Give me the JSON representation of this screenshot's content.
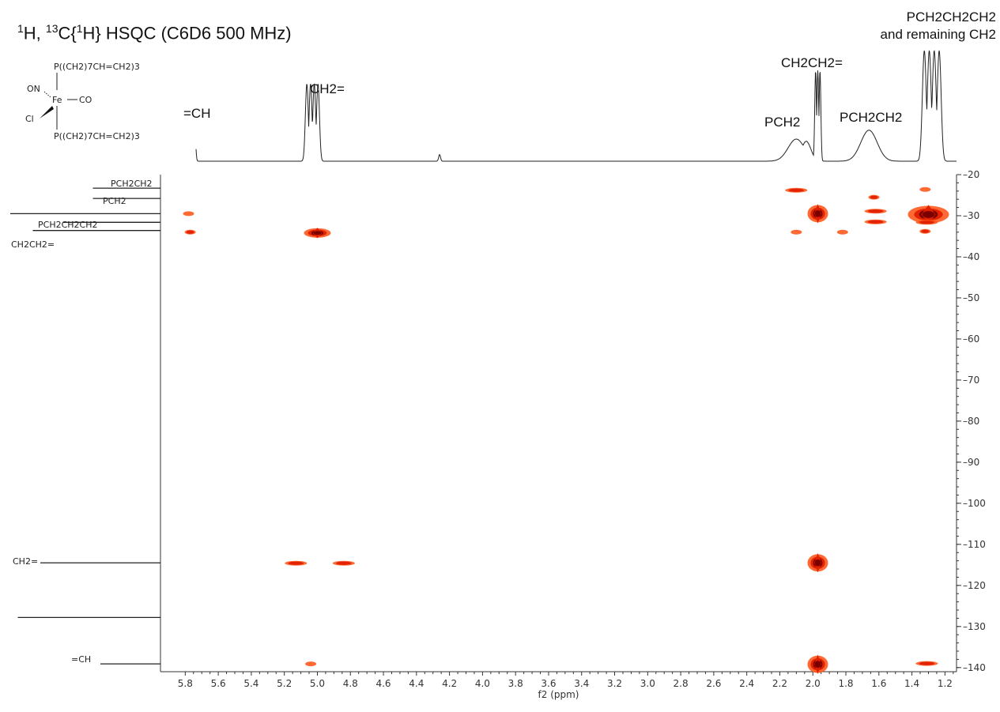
{
  "title": {
    "sup1": "1",
    "part1": "H, ",
    "sup2": "13",
    "part2": "C{",
    "sup3": "1",
    "part3": "H} HSQC (C6D6 500 MHz)"
  },
  "molecule": {
    "top_ligand": "P((CH2)7CH=CH2)3",
    "bottom_ligand": "P((CH2)7CH=CH2)3",
    "left_top": "ON",
    "left_bottom": "Cl",
    "metal": "Fe",
    "right": "CO"
  },
  "peak_labels": {
    "vinyl_ch": "=CH",
    "ch2_eq": "CH2=",
    "pch2": "PCH2",
    "ch2ch2_eq": "CH2CH2=",
    "pch2ch2": "PCH2CH2",
    "pch2ch2ch2_line1": "PCH2CH2CH2",
    "pch2ch2ch2_line2": "and remaining CH2"
  },
  "carbon_labels": {
    "pch2ch2": "PCH2CH2",
    "pch2": "PCH2",
    "pch2ch2ch2": "PCH2CH2CH2",
    "ch2ch2_eq": "CH2CH2=",
    "ch2_eq": "CH2=",
    "eq_ch": "=CH"
  },
  "chart_data": {
    "type": "heatmap",
    "xlabel": "f2 (ppm)",
    "ylabel": "",
    "xlim": [
      5.95,
      1.13
    ],
    "ylim": [
      20,
      141
    ],
    "x_ticks": [
      5.8,
      5.6,
      5.4,
      5.2,
      5.0,
      4.8,
      4.6,
      4.4,
      4.2,
      4.0,
      3.8,
      3.6,
      3.4,
      3.2,
      3.0,
      2.8,
      2.6,
      2.4,
      2.2,
      2.0,
      1.8,
      1.6,
      1.4,
      1.2
    ],
    "y_ticks": [
      20,
      30,
      40,
      50,
      60,
      70,
      80,
      90,
      100,
      110,
      120,
      130,
      140
    ],
    "proton_1d": [
      {
        "ppm": 5.77,
        "height": 0.27,
        "width": 0.035,
        "multiplet": 5
      },
      {
        "ppm": 5.03,
        "height": 0.7,
        "width": 0.045,
        "multiplet": 4
      },
      {
        "ppm": 4.26,
        "height": 0.06,
        "width": 0.008,
        "multiplet": 1
      },
      {
        "ppm": 2.1,
        "height": 0.2,
        "width": 0.07,
        "multiplet": 1
      },
      {
        "ppm": 2.04,
        "height": 0.18,
        "width": 0.04,
        "multiplet": 1
      },
      {
        "ppm": 1.97,
        "height": 0.82,
        "width": 0.02,
        "multiplet": 3
      },
      {
        "ppm": 1.66,
        "height": 0.28,
        "width": 0.07,
        "multiplet": 1
      },
      {
        "ppm": 1.28,
        "height": 1.0,
        "width": 0.06,
        "multiplet": 4
      }
    ],
    "carbon_1d": [
      {
        "ppm": 23.3,
        "height": 0.45
      },
      {
        "ppm": 25.8,
        "height": 0.45
      },
      {
        "ppm": 29.5,
        "height": 1.0
      },
      {
        "ppm": 31.6,
        "height": 0.65
      },
      {
        "ppm": 33.6,
        "height": 0.85
      },
      {
        "ppm": 114.5,
        "height": 0.8
      },
      {
        "ppm": 127.8,
        "height": 0.95
      },
      {
        "ppm": 139.1,
        "height": 0.4
      }
    ],
    "cross_peaks": [
      {
        "h": 1.97,
        "c": 29.5,
        "intensity": 1.0,
        "size": "large"
      },
      {
        "h": 1.3,
        "c": 29.7,
        "intensity": 1.0,
        "size": "xlarge"
      },
      {
        "h": 5.0,
        "c": 34.2,
        "intensity": 0.9,
        "size": "medium"
      },
      {
        "h": 1.97,
        "c": 114.5,
        "intensity": 1.0,
        "size": "large"
      },
      {
        "h": 1.97,
        "c": 139.2,
        "intensity": 1.0,
        "size": "large"
      },
      {
        "h": 5.78,
        "c": 29.5,
        "intensity": 0.3,
        "size": "small"
      },
      {
        "h": 5.77,
        "c": 34.0,
        "intensity": 0.4,
        "size": "small"
      },
      {
        "h": 2.1,
        "c": 23.8,
        "intensity": 0.4,
        "size": "smear"
      },
      {
        "h": 2.1,
        "c": 34.0,
        "intensity": 0.3,
        "size": "small"
      },
      {
        "h": 1.82,
        "c": 34.0,
        "intensity": 0.3,
        "size": "small"
      },
      {
        "h": 1.63,
        "c": 25.5,
        "intensity": 0.4,
        "size": "small"
      },
      {
        "h": 1.62,
        "c": 28.9,
        "intensity": 0.5,
        "size": "smear"
      },
      {
        "h": 1.62,
        "c": 31.5,
        "intensity": 0.5,
        "size": "smear"
      },
      {
        "h": 1.32,
        "c": 23.6,
        "intensity": 0.3,
        "size": "small"
      },
      {
        "h": 1.31,
        "c": 31.6,
        "intensity": 0.4,
        "size": "smear"
      },
      {
        "h": 1.32,
        "c": 33.8,
        "intensity": 0.5,
        "size": "small"
      },
      {
        "h": 5.13,
        "c": 114.6,
        "intensity": 0.5,
        "size": "smear"
      },
      {
        "h": 4.84,
        "c": 114.6,
        "intensity": 0.5,
        "size": "smear"
      },
      {
        "h": 5.04,
        "c": 139.1,
        "intensity": 0.3,
        "size": "small"
      },
      {
        "h": 1.31,
        "c": 139.0,
        "intensity": 0.5,
        "size": "smear"
      }
    ]
  },
  "colors": {
    "contour_outer": "#ff5a1e",
    "contour_mid": "#e02000",
    "contour_core": "#7a0000",
    "axis": "#333333",
    "trace": "#222222"
  }
}
